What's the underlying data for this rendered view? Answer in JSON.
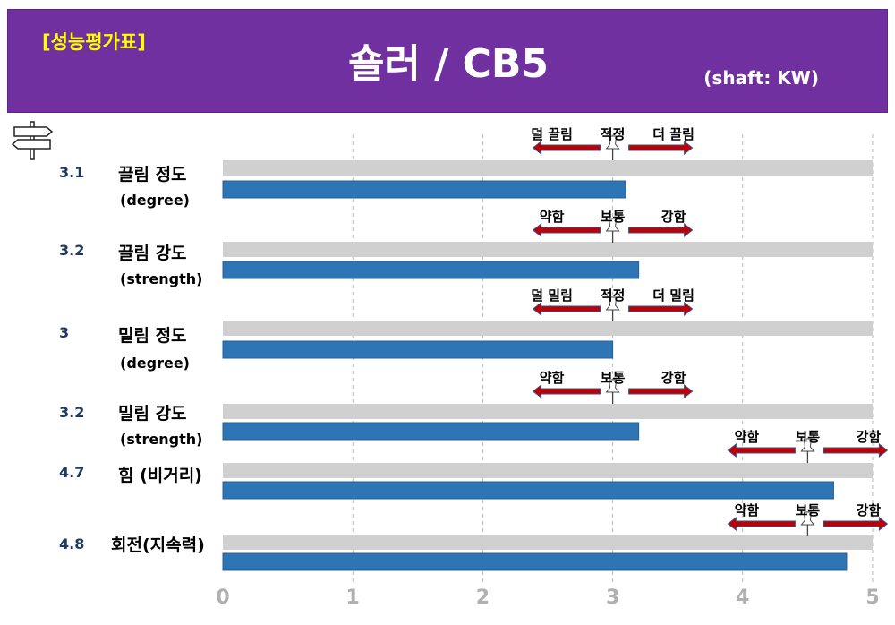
{
  "header": {
    "tag": "[성능평가표]",
    "title": "숄러 / CB5",
    "shaft": "(shaft: KW)"
  },
  "icons": {
    "signpost": "signpost-icon",
    "pin": "pushpin-icon"
  },
  "colors": {
    "header_bg": "#7030a0",
    "bar": "#2e75b6",
    "track": "#d0d0d0",
    "arrow": "#c00000",
    "arrow_outline": "#2f5597"
  },
  "chart_data": {
    "type": "bar",
    "orientation": "horizontal",
    "xlim": [
      0,
      5
    ],
    "x_ticks": [
      "0",
      "1",
      "2",
      "3",
      "4",
      "5"
    ],
    "grid": "vertical dashed",
    "rows": [
      {
        "value": 3.1,
        "value_label": "3.1",
        "label": "끌림 정도",
        "sub": "(degree)",
        "indicator": {
          "left": "덜 끌림",
          "center": "적정",
          "right": "더 끌림",
          "pin_at": 3.0
        }
      },
      {
        "value": 3.2,
        "value_label": "3.2",
        "label": "끌림 강도",
        "sub": "(strength)",
        "indicator": {
          "left": "약함",
          "center": "보통",
          "right": "강함",
          "pin_at": 3.0
        }
      },
      {
        "value": 3.0,
        "value_label": "3",
        "label": "밀림 정도",
        "sub": "(degree)",
        "indicator": {
          "left": "덜 밀림",
          "center": "적정",
          "right": "더 밀림",
          "pin_at": 3.0
        }
      },
      {
        "value": 3.2,
        "value_label": "3.2",
        "label": "밀림 강도",
        "sub": "(strength)",
        "indicator": {
          "left": "약함",
          "center": "보통",
          "right": "강함",
          "pin_at": 3.0
        }
      },
      {
        "value": 4.7,
        "value_label": "4.7",
        "label": "힘 (비거리)",
        "sub": "",
        "indicator": {
          "left": "약함",
          "center": "보통",
          "right": "강함",
          "pin_at": 4.5
        }
      },
      {
        "value": 4.8,
        "value_label": "4.8",
        "label": "회전(지속력)",
        "sub": "",
        "indicator": {
          "left": "약함",
          "center": "보통",
          "right": "강함",
          "pin_at": 4.5
        }
      }
    ]
  }
}
